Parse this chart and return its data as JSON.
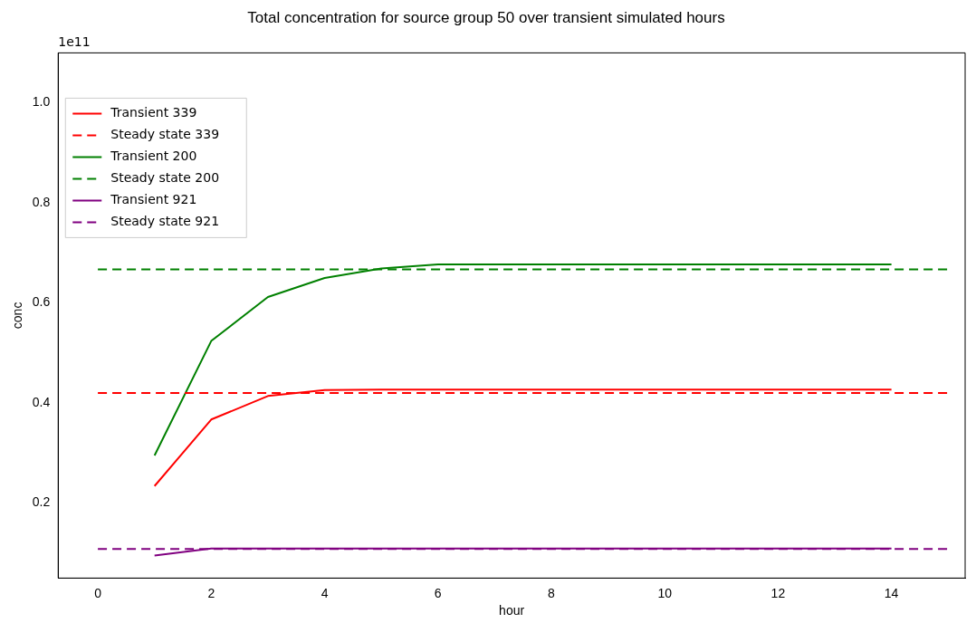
{
  "chart_data": {
    "type": "line",
    "title": "Total concentration for source group 50 over transient simulated hours",
    "xlabel": "hour",
    "ylabel": "conc",
    "annotations": [
      "1e11"
    ],
    "xlim": [
      -0.7,
      15.3
    ],
    "xticks": [
      0,
      2,
      4,
      6,
      8,
      10,
      12,
      14
    ],
    "ylim": [
      0.05,
      1.1
    ],
    "yticks": [
      0.2,
      0.4,
      0.6,
      0.8,
      {
        "value": 1,
        "label": "1.0"
      }
    ],
    "grid": false,
    "legend": "top left",
    "marker": "none",
    "series": [
      {
        "name": "Transient 339",
        "color": "#ff0000",
        "line_style": "solid",
        "x": [
          1,
          2,
          3,
          4,
          5,
          6,
          7,
          8,
          9,
          10,
          11,
          12,
          13,
          14
        ],
        "values": [
          0.234,
          0.367,
          0.414,
          0.426,
          0.427,
          0.427,
          0.427,
          0.427,
          0.427,
          0.427,
          0.427,
          0.427,
          0.427,
          0.427
        ]
      },
      {
        "name": "Steady state 339",
        "color": "#ff0000",
        "line_style": "dashed",
        "x": [
          0,
          15
        ],
        "values": [
          0.42,
          0.42
        ]
      },
      {
        "name": "Transient 200",
        "color": "#008000",
        "line_style": "solid",
        "x": [
          1,
          2,
          3,
          4,
          5,
          6,
          7,
          8,
          9,
          10,
          11,
          12,
          13,
          14
        ],
        "values": [
          0.295,
          0.524,
          0.612,
          0.65,
          0.669,
          0.677,
          0.677,
          0.677,
          0.677,
          0.677,
          0.677,
          0.677,
          0.677,
          0.677
        ]
      },
      {
        "name": "Steady state 200",
        "color": "#008000",
        "line_style": "dashed",
        "x": [
          0,
          15
        ],
        "values": [
          0.667,
          0.667
        ]
      },
      {
        "name": "Transient 921",
        "color": "#800080",
        "line_style": "solid",
        "x": [
          1,
          2,
          3,
          4,
          5,
          6,
          7,
          8,
          9,
          10,
          11,
          12,
          13,
          14
        ],
        "values": [
          0.095,
          0.109,
          0.109,
          0.109,
          0.109,
          0.109,
          0.109,
          0.109,
          0.109,
          0.109,
          0.109,
          0.109,
          0.109,
          0.109
        ]
      },
      {
        "name": "Steady state 921",
        "color": "#800080",
        "line_style": "dashed",
        "x": [
          0,
          15
        ],
        "values": [
          0.108,
          0.108
        ]
      }
    ]
  }
}
